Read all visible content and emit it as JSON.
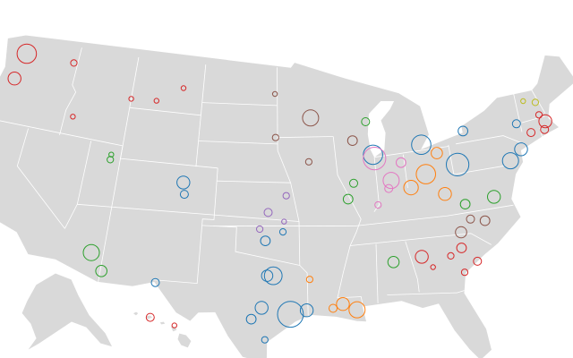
{
  "chart_data": {
    "type": "scatter",
    "projection": "albers",
    "series": [
      {
        "color": "#d62728",
        "lon": [
          -122.3,
          -122.7,
          -117.4,
          -116.2,
          -108.5,
          -111.0,
          -106.0,
          -84.4,
          -79.9,
          -81.0,
          -82.0,
          -81.1,
          -83.6,
          -71.1,
          -71.4,
          -72.7,
          -71.5,
          -157.9,
          -156.4
        ],
        "lat": [
          47.6,
          45.5,
          47.7,
          43.6,
          45.8,
          45.7,
          47.0,
          33.7,
          32.8,
          34.0,
          33.5,
          32.1,
          32.8,
          42.4,
          41.8,
          41.8,
          43.0,
          21.3,
          20.8
        ],
        "size": [
          12,
          8,
          4,
          3,
          3,
          3,
          3,
          8,
          5,
          6,
          4,
          4,
          3,
          8,
          5,
          5,
          4,
          5,
          3
        ]
      },
      {
        "color": "#8c564b",
        "lon": [
          -93.3,
          -89.4,
          -93.6,
          -96.7,
          -96.8,
          -80.8,
          -78.6,
          -79.8
        ],
        "lat": [
          45.0,
          43.1,
          41.6,
          43.5,
          46.9,
          35.2,
          35.8,
          36.1
        ],
        "size": [
          10,
          6,
          4,
          4,
          3,
          7,
          6,
          5
        ]
      },
      {
        "color": "#2ca02c",
        "lon": [
          -111.9,
          -111.9,
          -112.0,
          -110.9,
          -77.4,
          -80.0,
          -89.6,
          -90.2,
          -86.8,
          -88.0
        ],
        "lat": [
          40.8,
          41.2,
          33.5,
          32.2,
          37.5,
          37.3,
          39.8,
          38.6,
          33.5,
          44.5
        ],
        "size": [
          4,
          3,
          10,
          7,
          8,
          6,
          5,
          6,
          7,
          5
        ]
      },
      {
        "color": "#1f77b4",
        "lon": [
          -105.0,
          -104.8,
          -97.5,
          -96.0,
          -96.8,
          -97.3,
          -95.4,
          -98.5,
          -97.7,
          -97.4,
          -94.1,
          -106.4,
          -87.6,
          -74.0,
          -75.2,
          -80.0,
          -78.9,
          -83.0,
          -73.8
        ],
        "lat": [
          39.7,
          38.8,
          35.5,
          36.2,
          32.8,
          32.8,
          29.8,
          29.4,
          30.3,
          27.8,
          30.1,
          31.8,
          41.9,
          40.7,
          40.0,
          40.4,
          42.9,
          42.3,
          42.7
        ],
        "size": [
          8,
          5,
          6,
          4,
          11,
          7,
          16,
          6,
          8,
          4,
          8,
          5,
          12,
          8,
          10,
          14,
          6,
          12,
          5
        ]
      },
      {
        "color": "#ff7f0e",
        "lon": [
          -83.0,
          -84.5,
          -81.7,
          -81.6,
          -90.1,
          -91.2,
          -92.0,
          -93.8
        ],
        "lat": [
          40.0,
          39.1,
          41.5,
          38.3,
          30.0,
          30.5,
          30.2,
          32.5
        ],
        "size": [
          12,
          9,
          7,
          8,
          10,
          8,
          5,
          4
        ]
      },
      {
        "color": "#e377c2",
        "lon": [
          -86.2,
          -87.5,
          -85.1,
          -86.5,
          -87.6
        ],
        "lat": [
          39.8,
          41.6,
          41.1,
          39.2,
          38.0
        ],
        "size": [
          10,
          14,
          6,
          5,
          4
        ]
      },
      {
        "color": "#9467bd",
        "lon": [
          -97.3,
          -95.7,
          -98.0,
          -95.9
        ],
        "lat": [
          37.7,
          39.0,
          36.4,
          37.0
        ],
        "size": [
          5,
          4,
          4,
          3
        ]
      },
      {
        "color": "#bcbd22",
        "lon": [
          -71.5,
          -72.6
        ],
        "lat": [
          44.0,
          44.3
        ],
        "size": [
          4,
          3
        ]
      }
    ]
  }
}
